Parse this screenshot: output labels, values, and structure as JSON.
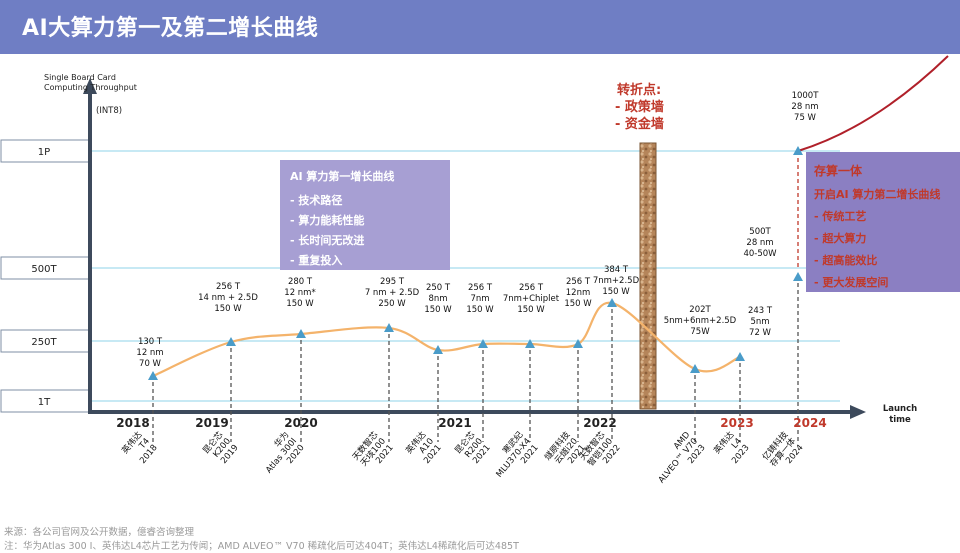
{
  "title": "AI大算力第一及第二增长曲线",
  "chart_data": {
    "type": "line",
    "y_axis_label": [
      "Single Board Card",
      "Computing Throughput"
    ],
    "y_unit": "(INT8)",
    "x_axis_label": [
      "Launch",
      "time"
    ],
    "y_levels": [
      "1P",
      "500T",
      "250T",
      "1T"
    ],
    "years": [
      {
        "label": "2018",
        "color": "#222222"
      },
      {
        "label": "2019",
        "color": "#222222"
      },
      {
        "label": "2020",
        "color": "#222222"
      },
      {
        "label": "2021",
        "color": "#222222"
      },
      {
        "label": "2022",
        "color": "#222222"
      },
      {
        "label": "2023",
        "color": "#c0392b"
      },
      {
        "label": "2024",
        "color": "#c0392b"
      }
    ],
    "points": [
      {
        "value_t": 130,
        "specs": [
          "130 T",
          "12 nm",
          "70 W"
        ],
        "product": [
          "英伟达",
          "T4",
          "2018"
        ]
      },
      {
        "value_t": 256,
        "specs": [
          "256 T",
          "14 nm + 2.5D",
          "150 W"
        ],
        "product": [
          "昆仑芯",
          "K200",
          "2019"
        ]
      },
      {
        "value_t": 280,
        "specs": [
          "280 T",
          "12 nm*",
          "150 W"
        ],
        "product": [
          "华为",
          "Atlas 300I",
          "2020"
        ]
      },
      {
        "value_t": 295,
        "specs": [
          "295 T",
          "7 nm + 2.5D",
          "250 W"
        ],
        "product": [
          "天数智芯",
          "天垓100",
          "2021"
        ]
      },
      {
        "value_t": 250,
        "specs": [
          "250 T",
          "8nm",
          "150 W"
        ],
        "product": [
          "英伟达",
          "A10",
          "2021"
        ]
      },
      {
        "value_t": 256,
        "specs": [
          "256 T",
          "7nm",
          "150 W"
        ],
        "product": [
          "昆仑芯",
          "R200",
          "2021"
        ]
      },
      {
        "value_t": 256,
        "specs": [
          "256 T",
          "7nm+Chiplet",
          "150 W"
        ],
        "product": [
          "寒武纪",
          "MLU370-X4",
          "2021"
        ]
      },
      {
        "value_t": 256,
        "specs": [
          "256 T",
          "12nm",
          "150 W"
        ],
        "product": [
          "燧原科技",
          "云燧i20",
          "2021"
        ]
      },
      {
        "value_t": 384,
        "specs": [
          "384 T",
          "7nm+2.5D",
          "150 W"
        ],
        "product": [
          "天数智芯",
          "智铠100",
          "2022"
        ]
      },
      {
        "value_t": 202,
        "specs": [
          "202T",
          "5nm+6nm+2.5D",
          "75W"
        ],
        "product": [
          "AMD",
          "ALVEO™ V70",
          "2023"
        ]
      },
      {
        "value_t": 243,
        "specs": [
          "243 T",
          "5nm",
          "72 W"
        ],
        "product": [
          "英伟达",
          "L4",
          "2023"
        ]
      },
      {
        "value_t": 500,
        "specs": [
          "500T",
          "28 nm",
          "40-50W"
        ],
        "product": [
          "亿铸科技",
          "存算一体",
          "2024"
        ]
      },
      {
        "value_t": 1000,
        "specs": [
          "1000T",
          "28 nm",
          "75 W"
        ],
        "product": []
      }
    ],
    "turning_point": {
      "title": "转折点:",
      "items": [
        "- 政策墙",
        "- 资金墙"
      ]
    },
    "curve1_box": {
      "title": "AI 算力第一增长曲线",
      "items": [
        "-  技术路径",
        "-  算力能耗性能",
        "-  长时间无改进",
        "-  重复投入"
      ]
    },
    "curve2_box": {
      "title": "存算一体",
      "subtitle": "开启AI 算力第二增长曲线",
      "items": [
        "-  传统工艺",
        "-  超大算力",
        "-  超高能效比",
        "-  更大发展空间"
      ]
    }
  },
  "footer": {
    "source": "来源：各公司官网及公开数据，億睿咨询整理",
    "note": "注：华为Atlas 300 I、英伟达L4芯片工艺为传闻；AMD ALVEO™ V70 稀疏化后可达404T；英伟达L4稀疏化后可达485T"
  },
  "colors": {
    "title_bg": "#6f7ec4",
    "axis": "#3d4a5c",
    "grid": "#8fd3e8",
    "curve1": "#f4b36b",
    "curve2": "#b0202a",
    "marker": "#4a9cc9",
    "red_text": "#c0392b",
    "box1": "#a79fd3",
    "box2": "#8b7fc2"
  }
}
